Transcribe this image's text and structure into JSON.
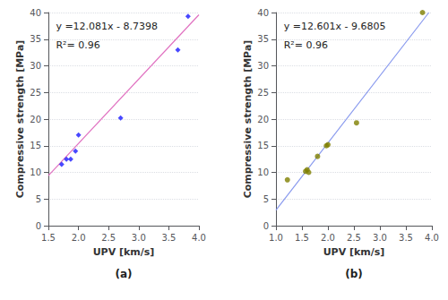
{
  "chart_data": [
    {
      "type": "scatter",
      "title": "(a)",
      "xlabel": "UPV [km/s]",
      "ylabel": "Compressive strength [MPa]",
      "annotations": [
        "y =12.081x - 8.7398",
        "R²= 0.96"
      ],
      "xlim": [
        1.5,
        4.0
      ],
      "xticks": [
        1.5,
        {
          "value": 2,
          "label": "2.0"
        },
        2.5,
        {
          "value": 3,
          "label": "3.0"
        },
        3.5,
        {
          "value": 4,
          "label": "4.0"
        }
      ],
      "ylim": [
        0,
        40
      ],
      "yticks": [
        0,
        5,
        10,
        15,
        20,
        25,
        30,
        35,
        40
      ],
      "grid": true,
      "series": [
        {
          "type": "line",
          "color": "#e070c0",
          "x": [
            1.5,
            4.0
          ],
          "values": [
            9.3817,
            39.5842
          ]
        },
        {
          "type": "scatter",
          "color": "#1a1aff",
          "marker": "diamond",
          "x": [
            1.72,
            1.8,
            1.87,
            1.95,
            2.0,
            2.7,
            3.65,
            3.82
          ],
          "values": [
            11.5,
            12.5,
            12.5,
            14.0,
            17.0,
            20.2,
            33.0,
            39.3
          ]
        }
      ]
    },
    {
      "type": "scatter",
      "title": "(b)",
      "xlabel": "UPV [km/s]",
      "ylabel": "Compressive strength [MPa]",
      "annotations": [
        "y =12.601x - 9.6805",
        "R²= 0.96"
      ],
      "xlim": [
        1.0,
        4.0
      ],
      "xticks": [
        {
          "value": 1,
          "label": "1.0"
        },
        1.5,
        {
          "value": 2,
          "label": "2.0"
        },
        2.5,
        {
          "value": 3,
          "label": "3.0"
        },
        3.5,
        {
          "value": 4,
          "label": "4.0"
        }
      ],
      "ylim": [
        0,
        40
      ],
      "yticks": [
        0,
        5,
        10,
        15,
        20,
        25,
        30,
        35,
        40
      ],
      "grid": true,
      "series": [
        {
          "type": "line",
          "color": "#8899ee",
          "x": [
            1.0,
            3.9425839
          ],
          "values": [
            2.9205,
            40.0
          ]
        },
        {
          "type": "scatter",
          "color": "#808000",
          "marker": "circle",
          "x": [
            1.22,
            1.57,
            1.6,
            1.63,
            1.8,
            1.97,
            2.0,
            2.55,
            3.82
          ],
          "values": [
            8.6,
            10.2,
            10.5,
            10.0,
            13.0,
            15.0,
            15.2,
            19.3,
            40.0
          ]
        }
      ]
    }
  ]
}
